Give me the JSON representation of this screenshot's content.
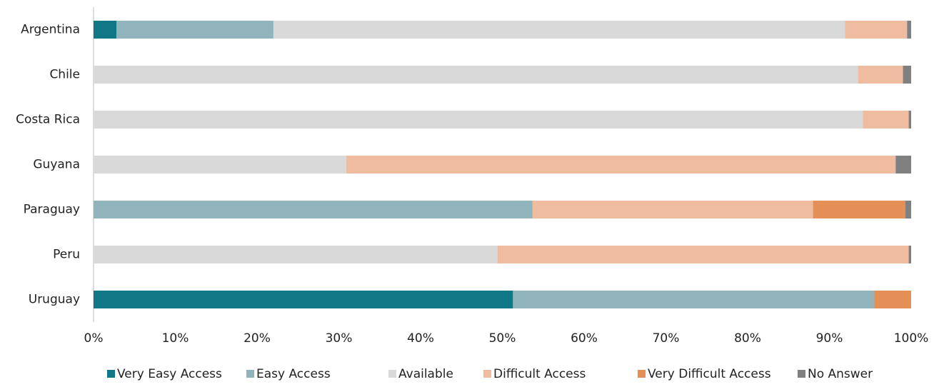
{
  "chart_data": {
    "type": "stacked_bar_horizontal",
    "categories": [
      "Argentina",
      "Chile",
      "Costa Rica",
      "Guyana",
      "Paraguay",
      "Peru",
      "Uruguay"
    ],
    "series": [
      {
        "name": "Very Easy Access",
        "color": "#0f7785",
        "values": [
          2.8,
          0,
          0,
          0,
          0,
          0,
          51.3
        ]
      },
      {
        "name": "Easy Access",
        "color": "#91b3bb",
        "values": [
          19.2,
          0,
          0,
          0,
          53.7,
          0,
          44.2
        ]
      },
      {
        "name": "Available",
        "color": "#d9d9d9",
        "values": [
          69.9,
          93.5,
          94.1,
          30.9,
          0,
          49.4,
          0
        ]
      },
      {
        "name": "Difficult Access",
        "color": "#f0bc9f",
        "values": [
          7.6,
          5.5,
          5.6,
          67.2,
          34.3,
          50.3,
          0
        ]
      },
      {
        "name": "Very Difficult Access",
        "color": "#e38f55",
        "values": [
          0,
          0,
          0,
          0,
          11.3,
          0,
          4.5
        ]
      },
      {
        "name": "No Answer",
        "color": "#808080",
        "values": [
          0.5,
          1.0,
          0.3,
          1.9,
          0.7,
          0.3,
          0
        ]
      }
    ],
    "xlim": [
      0,
      100
    ],
    "xticks": [
      {
        "value": 0,
        "label": "0%"
      },
      {
        "value": 10,
        "label": "10%"
      },
      {
        "value": 20,
        "label": "20%"
      },
      {
        "value": 30,
        "label": "30%"
      },
      {
        "value": 40,
        "label": "40%"
      },
      {
        "value": 50,
        "label": "50%"
      },
      {
        "value": 60,
        "label": "60%"
      },
      {
        "value": 70,
        "label": "70%"
      },
      {
        "value": 80,
        "label": "80%"
      },
      {
        "value": 90,
        "label": "90%"
      },
      {
        "value": 100,
        "label": "100%"
      }
    ],
    "legend": "bottom"
  }
}
